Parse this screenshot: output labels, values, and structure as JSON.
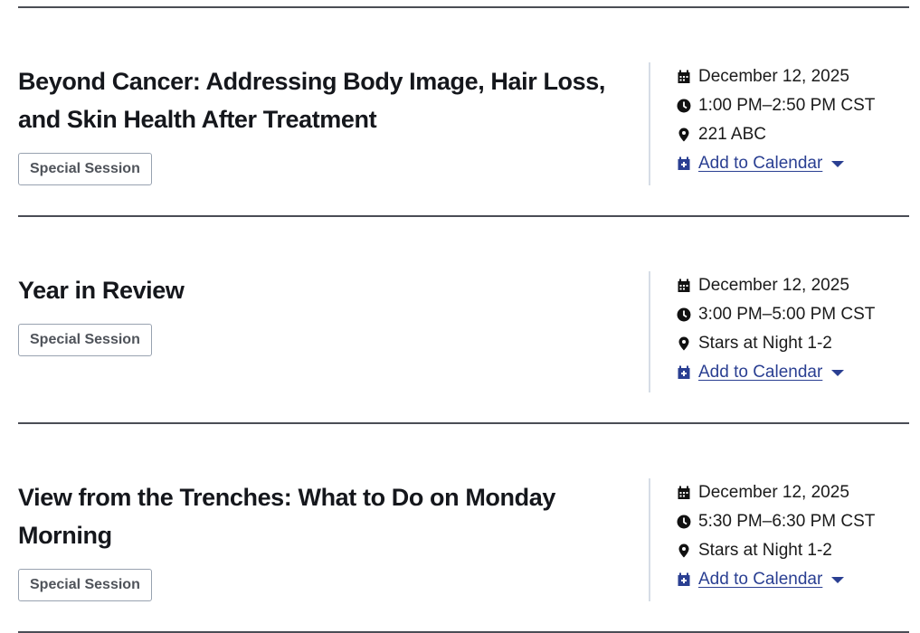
{
  "colors": {
    "link": "#2a3f92",
    "separator": "#4a4d55",
    "tag_border": "#98a2b0"
  },
  "sessions": [
    {
      "title": "Beyond Cancer: Addressing Body Image, Hair Loss, and Skin Health After Treatment",
      "tag": "Special Session",
      "date": "December 12, 2025",
      "time": "1:00 PM–2:50 PM CST",
      "location": "221 ABC",
      "calendar": "Add to Calendar"
    },
    {
      "title": "Year in Review",
      "tag": "Special Session",
      "date": "December 12, 2025",
      "time": "3:00 PM–5:00 PM CST",
      "location": "Stars at Night 1-2",
      "calendar": "Add to Calendar"
    },
    {
      "title": "View from the Trenches: What to Do on Monday Morning",
      "tag": "Special Session",
      "date": "December 12, 2025",
      "time": "5:30 PM–6:30 PM CST",
      "location": "Stars at Night 1-2",
      "calendar": "Add to Calendar"
    }
  ],
  "icons": {
    "date": "calendar-icon",
    "time": "clock-icon",
    "location": "map-pin-icon",
    "calendar": "calendar-plus-icon",
    "dropdown": "caret-down-icon"
  }
}
